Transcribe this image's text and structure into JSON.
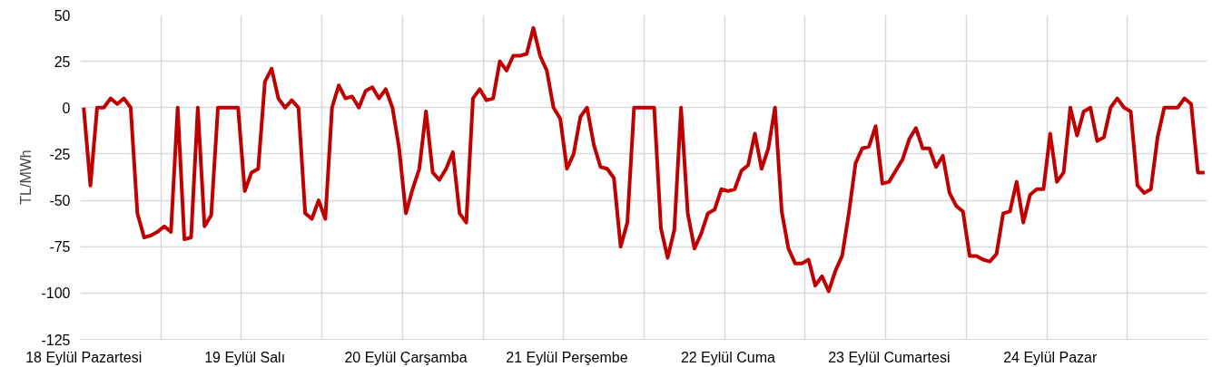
{
  "chart_data": {
    "type": "line",
    "ylabel": "TL/MWh",
    "categories": [
      "18 Eylül Pazartesi",
      null,
      null,
      null,
      null,
      null,
      null,
      null,
      null,
      null,
      null,
      null,
      null,
      null,
      null,
      null,
      null,
      null,
      null,
      null,
      null,
      null,
      null,
      null,
      "19 Eylül Salı",
      null,
      null,
      null,
      null,
      null,
      null,
      null,
      null,
      null,
      null,
      null,
      null,
      null,
      null,
      null,
      null,
      null,
      null,
      null,
      null,
      null,
      null,
      null,
      "20 Eylül Çarşamba",
      null,
      null,
      null,
      null,
      null,
      null,
      null,
      null,
      null,
      null,
      null,
      null,
      null,
      null,
      null,
      null,
      null,
      null,
      null,
      null,
      null,
      null,
      null,
      "21 Eylül Perşembe",
      null,
      null,
      null,
      null,
      null,
      null,
      null,
      null,
      null,
      null,
      null,
      null,
      null,
      null,
      null,
      null,
      null,
      null,
      null,
      null,
      null,
      null,
      null,
      "22 Eylül Cuma",
      null,
      null,
      null,
      null,
      null,
      null,
      null,
      null,
      null,
      null,
      null,
      null,
      null,
      null,
      null,
      null,
      null,
      null,
      null,
      null,
      null,
      null,
      null,
      "23 Eylül Cumartesi",
      null,
      null,
      null,
      null,
      null,
      null,
      null,
      null,
      null,
      null,
      null,
      null,
      null,
      null,
      null,
      null,
      null,
      null,
      null,
      null,
      null,
      null,
      null,
      "24 Eylül Pazar",
      null,
      null,
      null,
      null,
      null,
      null,
      null,
      null,
      null,
      null,
      null,
      null,
      null,
      null,
      null,
      null,
      null,
      null,
      null,
      null,
      null,
      null,
      null
    ],
    "series": [
      {
        "color": "#c00000",
        "values": [
          0,
          -42,
          0,
          0,
          5,
          2,
          5,
          0,
          -57,
          -70,
          -69,
          -67,
          -64,
          -67,
          0,
          -71,
          -70,
          0,
          -64,
          -58,
          0,
          0,
          0,
          0,
          -45,
          -35,
          -33,
          14,
          21,
          5,
          0,
          4,
          0,
          -57,
          -60,
          -50,
          -60,
          0,
          12,
          5,
          6,
          0,
          9,
          11,
          5,
          10,
          0,
          -22,
          -57,
          -44,
          -33,
          -2,
          -35,
          -39,
          -33,
          -24,
          -57,
          -62,
          5,
          10,
          4,
          5,
          25,
          20,
          28,
          28,
          29,
          43,
          28,
          20,
          0,
          -6,
          -33,
          -25,
          -5,
          0,
          -20,
          -32,
          -33,
          -38,
          -75,
          -62,
          0,
          0,
          0,
          0,
          -65,
          -81,
          -66,
          0,
          -57,
          -76,
          -68,
          -57,
          -55,
          -44,
          -45,
          -44,
          -34,
          -31,
          -14,
          -33,
          -22,
          0,
          -56,
          -76,
          -84,
          -84,
          -82,
          -96,
          -91,
          -99,
          -88,
          -80,
          -57,
          -30,
          -22,
          -21,
          -10,
          -41,
          -40,
          -34,
          -28,
          -17,
          -11,
          -22,
          -22,
          -32,
          -26,
          -46,
          -53,
          -56,
          -80,
          -80,
          -82,
          -83,
          -79,
          -57,
          -56,
          -40,
          -62,
          -47,
          -44,
          -44,
          -14,
          -40,
          -35,
          0,
          -15,
          -2,
          0,
          -18,
          -16,
          0,
          5,
          0,
          -2,
          -42,
          -46,
          -44,
          -16,
          0,
          0,
          0,
          5,
          2,
          -35,
          -35
        ]
      }
    ],
    "ylim": [
      -125,
      50
    ],
    "yticks": [
      -125,
      -100,
      -75,
      -50,
      -25,
      0,
      25,
      50
    ],
    "grid": true
  }
}
